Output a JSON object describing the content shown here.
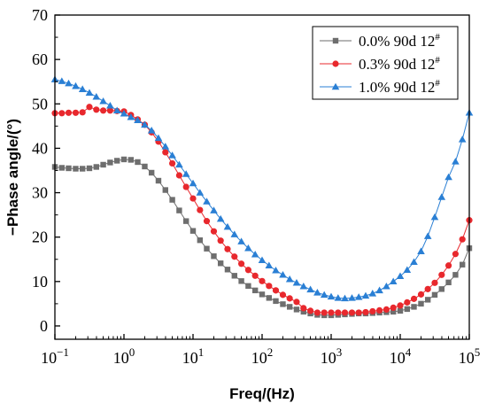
{
  "chart_data": {
    "type": "scatter",
    "title": "",
    "xlabel": "Freq/(Hz)",
    "ylabel": "−Phase angle/(°)",
    "xscale": "log",
    "xlim": [
      0.1,
      100000
    ],
    "ylim": [
      -3,
      70
    ],
    "x_ticks": [
      {
        "value": 0.1,
        "base": "10",
        "exp": "−1"
      },
      {
        "value": 1,
        "base": "10",
        "exp": "0"
      },
      {
        "value": 10,
        "base": "10",
        "exp": "1"
      },
      {
        "value": 100,
        "base": "10",
        "exp": "2"
      },
      {
        "value": 1000,
        "base": "10",
        "exp": "3"
      },
      {
        "value": 10000,
        "base": "10",
        "exp": "4"
      },
      {
        "value": 100000,
        "base": "10",
        "exp": "5"
      }
    ],
    "y_ticks": [
      0,
      10,
      20,
      30,
      40,
      50,
      60,
      70
    ],
    "grid": false,
    "legend_position": "top-right",
    "series": [
      {
        "name": "0.0% 90d 12",
        "name_sup": "#",
        "color": "#6e6e6e",
        "marker": "square",
        "x": [
          0.1,
          0.126,
          0.158,
          0.2,
          0.251,
          0.316,
          0.398,
          0.501,
          0.631,
          0.794,
          1,
          1.26,
          1.58,
          2,
          2.51,
          3.16,
          3.98,
          5.01,
          6.31,
          7.94,
          10,
          12.6,
          15.8,
          20,
          25.1,
          31.6,
          39.8,
          50.1,
          63.1,
          79.4,
          100,
          126,
          158,
          200,
          251,
          316,
          398,
          501,
          631,
          794,
          1000,
          1260,
          1580,
          2000,
          2510,
          3160,
          3980,
          5010,
          6310,
          7940,
          10000,
          12600,
          15800,
          20000,
          25100,
          31600,
          39800,
          50100,
          63100,
          79400,
          100000
        ],
        "y": [
          35.8,
          35.6,
          35.5,
          35.4,
          35.4,
          35.5,
          35.8,
          36.3,
          36.8,
          37.2,
          37.5,
          37.4,
          36.9,
          35.9,
          34.5,
          32.7,
          30.6,
          28.4,
          26,
          23.6,
          21.4,
          19.3,
          17.4,
          15.7,
          14.1,
          12.7,
          11.3,
          10.1,
          9,
          8,
          7.1,
          6.3,
          5.6,
          4.9,
          4.3,
          3.7,
          3.2,
          2.8,
          2.5,
          2.4,
          2.4,
          2.5,
          2.6,
          2.7,
          2.8,
          2.8,
          2.9,
          3,
          3.1,
          3.2,
          3.4,
          3.8,
          4.3,
          5,
          5.9,
          7,
          8.3,
          9.8,
          11.5,
          13.8,
          17.5
        ]
      },
      {
        "name": "0.3% 90d 12",
        "name_sup": "#",
        "color": "#e8282d",
        "marker": "circle",
        "x": [
          0.1,
          0.126,
          0.158,
          0.2,
          0.251,
          0.316,
          0.398,
          0.501,
          0.631,
          0.794,
          1,
          1.26,
          1.58,
          2,
          2.51,
          3.16,
          3.98,
          5.01,
          6.31,
          7.94,
          10,
          12.6,
          15.8,
          20,
          25.1,
          31.6,
          39.8,
          50.1,
          63.1,
          79.4,
          100,
          126,
          158,
          200,
          251,
          316,
          398,
          501,
          631,
          794,
          1000,
          1260,
          1580,
          2000,
          2510,
          3160,
          3980,
          5010,
          6310,
          7940,
          10000,
          12600,
          15800,
          20000,
          25100,
          31600,
          39800,
          50100,
          63100,
          79400,
          100000
        ],
        "y": [
          47.9,
          47.9,
          48,
          48,
          48.1,
          49.3,
          48.7,
          48.5,
          48.5,
          48.4,
          48.3,
          47.5,
          46.5,
          45.3,
          43.6,
          41.5,
          39.1,
          36.6,
          33.9,
          31.3,
          28.7,
          26.1,
          23.6,
          21.3,
          19.2,
          17.3,
          15.6,
          14,
          12.6,
          11.3,
          10.1,
          9,
          8,
          7,
          6.2,
          5.4,
          4,
          3.4,
          3,
          3,
          3,
          3,
          3,
          3,
          3,
          3.1,
          3.3,
          3.5,
          3.7,
          4.1,
          4.6,
          5.3,
          6.1,
          7.1,
          8.3,
          9.7,
          11.5,
          13.6,
          16.2,
          19.5,
          23.8
        ]
      },
      {
        "name": "1.0% 90d 12",
        "name_sup": "#",
        "color": "#2a7fd4",
        "marker": "triangle",
        "x": [
          0.1,
          0.126,
          0.158,
          0.2,
          0.251,
          0.316,
          0.398,
          0.501,
          0.631,
          0.794,
          1,
          1.26,
          1.58,
          2,
          2.51,
          3.16,
          3.98,
          5.01,
          6.31,
          7.94,
          10,
          12.6,
          15.8,
          20,
          25.1,
          31.6,
          39.8,
          50.1,
          63.1,
          79.4,
          100,
          126,
          158,
          200,
          251,
          316,
          398,
          501,
          631,
          794,
          1000,
          1260,
          1580,
          2000,
          2510,
          3160,
          3980,
          5010,
          6310,
          7940,
          10000,
          12600,
          15800,
          20000,
          25100,
          31600,
          39800,
          50100,
          63100,
          79400,
          100000
        ],
        "y": [
          55.5,
          55.1,
          54.6,
          54,
          53.3,
          52.5,
          51.6,
          50.6,
          49.6,
          48.5,
          47.8,
          47,
          46.3,
          45.3,
          44,
          42.3,
          40.4,
          38.4,
          36.3,
          34.2,
          32.1,
          30,
          28,
          26,
          24.1,
          22.3,
          20.6,
          19,
          17.5,
          16.1,
          14.8,
          13.6,
          12.5,
          11.5,
          10.5,
          9.7,
          8.9,
          8.2,
          7.5,
          7,
          6.6,
          6.3,
          6.2,
          6.3,
          6.5,
          6.8,
          7.3,
          8,
          8.9,
          10,
          11.2,
          12.6,
          14.4,
          16.8,
          20.2,
          24.5,
          29,
          33.5,
          37,
          42,
          48
        ]
      }
    ]
  }
}
